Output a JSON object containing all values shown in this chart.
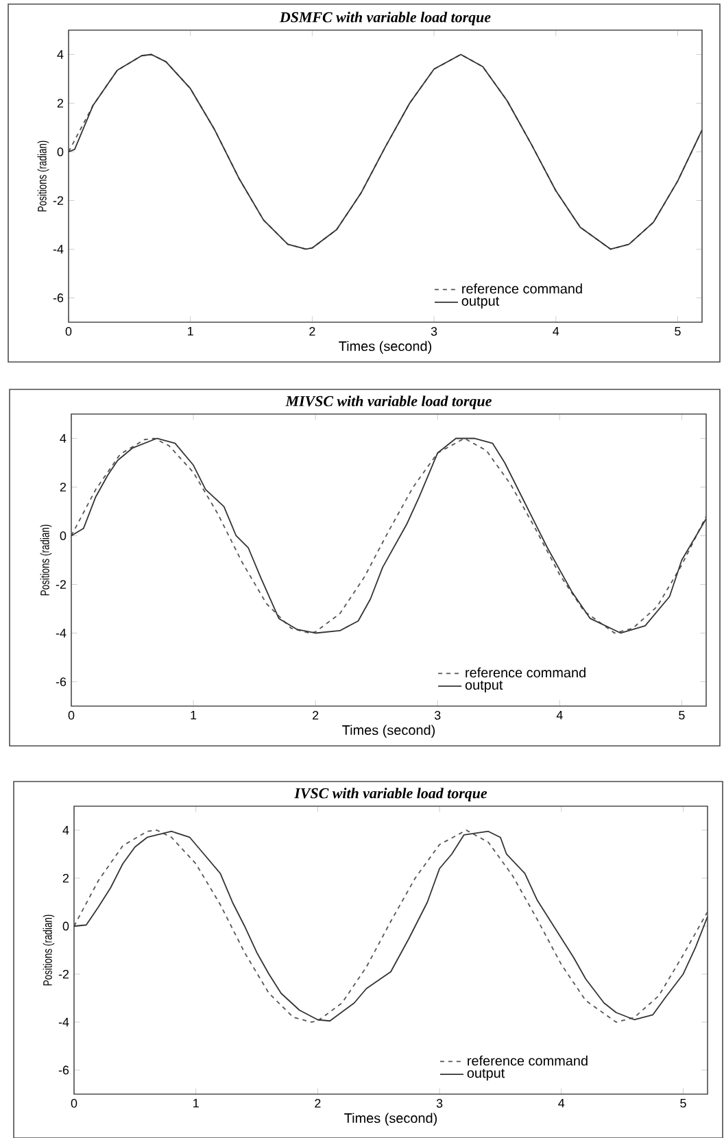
{
  "chart_data": [
    {
      "type": "line",
      "title": "DSMFC  with variable load torque",
      "xlabel": "Times   (second)",
      "ylabel": "Positions  (radian)",
      "xlim": [
        0,
        5.2
      ],
      "ylim": [
        -7,
        5
      ],
      "xticks": [
        0,
        1,
        2,
        3,
        4,
        5
      ],
      "yticks": [
        -6,
        -4,
        -2,
        0,
        2,
        4
      ],
      "legend": "bottom right",
      "series": [
        {
          "name": "reference  command",
          "color": "#555555",
          "line_style": "dashed",
          "x": [
            0,
            0.2,
            0.4,
            0.6,
            0.68,
            0.8,
            1.0,
            1.2,
            1.4,
            1.6,
            1.8,
            1.95,
            2.0,
            2.2,
            2.4,
            2.6,
            2.8,
            3.0,
            3.22,
            3.4,
            3.6,
            3.8,
            4.0,
            4.2,
            4.45,
            4.6,
            4.8,
            5.0,
            5.2
          ],
          "values": [
            0,
            1.9,
            3.35,
            3.95,
            4.0,
            3.7,
            2.6,
            0.9,
            -1.1,
            -2.8,
            -3.8,
            -4.0,
            -3.95,
            -3.2,
            -1.7,
            0.2,
            2.0,
            3.4,
            4.0,
            3.5,
            2.1,
            0.3,
            -1.6,
            -3.1,
            -4.0,
            -3.8,
            -2.9,
            -1.2,
            0.9
          ]
        },
        {
          "name": "output",
          "color": "#333333",
          "line_style": "solid",
          "x": [
            0,
            0.05,
            0.2,
            0.4,
            0.6,
            0.68,
            0.8,
            1.0,
            1.2,
            1.4,
            1.6,
            1.8,
            1.95,
            2.0,
            2.2,
            2.4,
            2.6,
            2.8,
            3.0,
            3.22,
            3.4,
            3.6,
            3.8,
            4.0,
            4.2,
            4.45,
            4.6,
            4.8,
            5.0,
            5.2
          ],
          "values": [
            0,
            0.1,
            1.9,
            3.35,
            3.95,
            4.0,
            3.7,
            2.6,
            0.9,
            -1.1,
            -2.8,
            -3.8,
            -4.0,
            -3.95,
            -3.2,
            -1.7,
            0.2,
            2.0,
            3.4,
            4.0,
            3.5,
            2.1,
            0.3,
            -1.6,
            -3.1,
            -4.0,
            -3.8,
            -2.9,
            -1.2,
            0.9
          ]
        }
      ]
    },
    {
      "type": "line",
      "title": "MIVSC with variable load torque",
      "xlabel": "Times   (second)",
      "ylabel": "Positions  (radian)",
      "xlim": [
        0,
        5.2
      ],
      "ylim": [
        -7,
        5
      ],
      "xticks": [
        0,
        1,
        2,
        3,
        4,
        5
      ],
      "yticks": [
        -6,
        -4,
        -2,
        0,
        2,
        4
      ],
      "legend": "bottom right",
      "series": [
        {
          "name": "reference  command",
          "color": "#555555",
          "line_style": "dashed",
          "x": [
            0,
            0.2,
            0.4,
            0.6,
            0.68,
            0.8,
            1.0,
            1.2,
            1.4,
            1.6,
            1.8,
            1.95,
            2.0,
            2.2,
            2.4,
            2.6,
            2.8,
            3.0,
            3.22,
            3.4,
            3.6,
            3.8,
            4.0,
            4.2,
            4.45,
            4.6,
            4.8,
            5.0,
            5.2
          ],
          "values": [
            0,
            1.9,
            3.35,
            3.95,
            4.0,
            3.7,
            2.6,
            0.9,
            -1.1,
            -2.8,
            -3.8,
            -4.0,
            -3.95,
            -3.2,
            -1.7,
            0.2,
            2.0,
            3.4,
            4.0,
            3.5,
            2.1,
            0.3,
            -1.6,
            -3.1,
            -4.0,
            -3.8,
            -2.9,
            -1.2,
            0.8
          ]
        },
        {
          "name": "output",
          "color": "#333333",
          "line_style": "solid",
          "x": [
            0,
            0.1,
            0.2,
            0.3,
            0.38,
            0.5,
            0.7,
            0.85,
            1.0,
            1.1,
            1.25,
            1.35,
            1.45,
            1.55,
            1.7,
            1.85,
            2.0,
            2.2,
            2.35,
            2.45,
            2.55,
            2.75,
            2.85,
            3.0,
            3.15,
            3.3,
            3.45,
            3.55,
            3.7,
            3.9,
            4.1,
            4.25,
            4.5,
            4.7,
            4.9,
            5.0,
            5.2
          ],
          "values": [
            0,
            0.3,
            1.6,
            2.5,
            3.1,
            3.6,
            4.0,
            3.8,
            2.9,
            1.9,
            1.2,
            0.0,
            -0.5,
            -1.7,
            -3.4,
            -3.85,
            -4.0,
            -3.9,
            -3.5,
            -2.6,
            -1.3,
            0.5,
            1.6,
            3.4,
            4.0,
            4.0,
            3.8,
            3.0,
            1.5,
            -0.5,
            -2.3,
            -3.4,
            -4.0,
            -3.7,
            -2.5,
            -1.0,
            0.7
          ]
        }
      ]
    },
    {
      "type": "line",
      "title": "IVSC with variable load torque",
      "xlabel": "Times   (second)",
      "ylabel": "Positions  (radian)",
      "xlim": [
        0,
        5.2
      ],
      "ylim": [
        -7,
        5
      ],
      "xticks": [
        0,
        1,
        2,
        3,
        4,
        5
      ],
      "yticks": [
        -6,
        -4,
        -2,
        0,
        2,
        4
      ],
      "legend": "bottom right",
      "series": [
        {
          "name": "reference  command",
          "color": "#555555",
          "line_style": "dashed",
          "x": [
            0,
            0.2,
            0.4,
            0.6,
            0.68,
            0.8,
            1.0,
            1.2,
            1.4,
            1.6,
            1.8,
            1.95,
            2.0,
            2.2,
            2.4,
            2.6,
            2.8,
            3.0,
            3.22,
            3.4,
            3.6,
            3.8,
            4.0,
            4.2,
            4.45,
            4.6,
            4.8,
            5.0,
            5.2
          ],
          "values": [
            0,
            1.9,
            3.35,
            3.95,
            4.0,
            3.7,
            2.6,
            0.9,
            -1.1,
            -2.8,
            -3.8,
            -4.0,
            -3.95,
            -3.2,
            -1.7,
            0.2,
            2.0,
            3.4,
            4.0,
            3.5,
            2.1,
            0.3,
            -1.6,
            -3.1,
            -4.0,
            -3.8,
            -2.9,
            -1.2,
            0.6
          ]
        },
        {
          "name": "output",
          "color": "#333333",
          "line_style": "solid",
          "x": [
            0,
            0.1,
            0.2,
            0.3,
            0.4,
            0.5,
            0.6,
            0.8,
            0.95,
            1.05,
            1.2,
            1.3,
            1.4,
            1.5,
            1.6,
            1.7,
            1.85,
            2.0,
            2.1,
            2.3,
            2.4,
            2.6,
            2.75,
            2.9,
            3.0,
            3.1,
            3.2,
            3.4,
            3.5,
            3.55,
            3.7,
            3.8,
            4.0,
            4.1,
            4.2,
            4.35,
            4.45,
            4.6,
            4.75,
            4.85,
            5.0,
            5.1,
            5.2
          ],
          "values": [
            0,
            0.05,
            0.8,
            1.6,
            2.6,
            3.3,
            3.7,
            3.95,
            3.7,
            3.1,
            2.2,
            1.0,
            0.0,
            -1.1,
            -2.0,
            -2.8,
            -3.5,
            -3.9,
            -3.95,
            -3.2,
            -2.6,
            -1.9,
            -0.5,
            1.0,
            2.4,
            3.0,
            3.8,
            3.95,
            3.7,
            3.0,
            2.2,
            1.1,
            -0.5,
            -1.3,
            -2.2,
            -3.2,
            -3.6,
            -3.9,
            -3.7,
            -3.0,
            -2.0,
            -0.9,
            0.4
          ]
        }
      ]
    }
  ]
}
